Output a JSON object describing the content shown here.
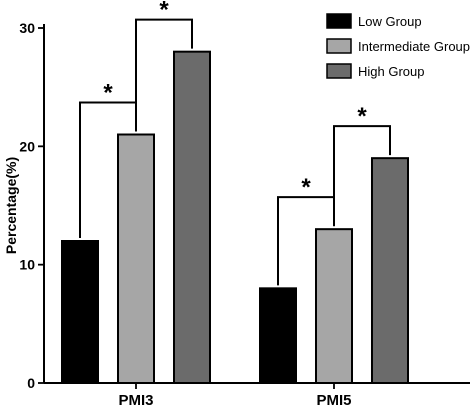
{
  "chart_data": {
    "type": "bar",
    "categories": [
      "PMI3",
      "PMI5"
    ],
    "series": [
      {
        "name": "Low Group",
        "values": [
          12,
          8
        ],
        "color": "#000000"
      },
      {
        "name": "Intermediate Group",
        "values": [
          21,
          13
        ],
        "color": "#a6a6a6"
      },
      {
        "name": "High Group",
        "values": [
          28,
          19
        ],
        "color": "#6b6b6b"
      }
    ],
    "ylabel": "Percentage(%)",
    "ylim": [
      0,
      30
    ],
    "yticks": [
      0,
      10,
      20,
      30
    ],
    "legend_position": "top-right",
    "grid": false,
    "significance": [
      {
        "category": "PMI3",
        "from_series": 0,
        "to_series": 1,
        "label": "*"
      },
      {
        "category": "PMI3",
        "from_series": 1,
        "to_series": 2,
        "label": "*"
      },
      {
        "category": "PMI5",
        "from_series": 0,
        "to_series": 1,
        "label": "*"
      },
      {
        "category": "PMI5",
        "from_series": 1,
        "to_series": 2,
        "label": "*"
      }
    ]
  }
}
